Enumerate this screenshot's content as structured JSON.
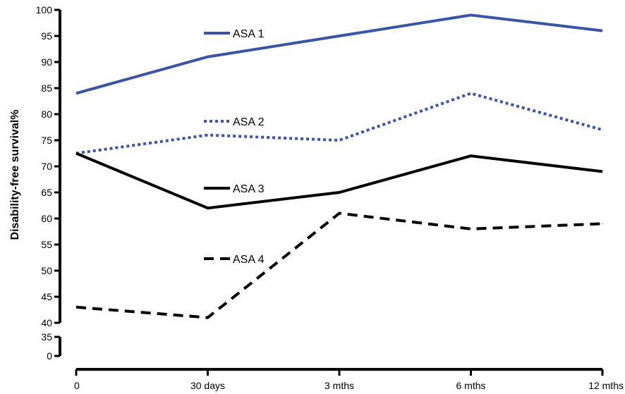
{
  "chart_data": {
    "type": "line",
    "categories": [
      "0",
      "30 days",
      "3 mths",
      "6 mths",
      "12 mths"
    ],
    "ylabel": "Disability-free survival%",
    "xlabel": "",
    "ylim": [
      40,
      100
    ],
    "y_ticks": [
      100,
      95,
      90,
      85,
      80,
      75,
      70,
      65,
      60,
      55,
      50,
      45,
      40
    ],
    "y_break_ticks": [
      35,
      0
    ],
    "grid": false,
    "series": [
      {
        "name": "ASA 1",
        "values": [
          84,
          91,
          95,
          99,
          96
        ],
        "color": "#3b55a6",
        "style": "solid"
      },
      {
        "name": "ASA 2",
        "values": [
          72.5,
          76,
          75,
          84,
          77
        ],
        "color": "#3b55a6",
        "style": "dotted"
      },
      {
        "name": "ASA 3",
        "values": [
          72.5,
          62,
          65,
          72,
          69
        ],
        "color": "#000000",
        "style": "solid"
      },
      {
        "name": "ASA 4",
        "values": [
          43,
          41,
          61,
          58,
          59
        ],
        "color": "#000000",
        "style": "dashed"
      }
    ]
  }
}
